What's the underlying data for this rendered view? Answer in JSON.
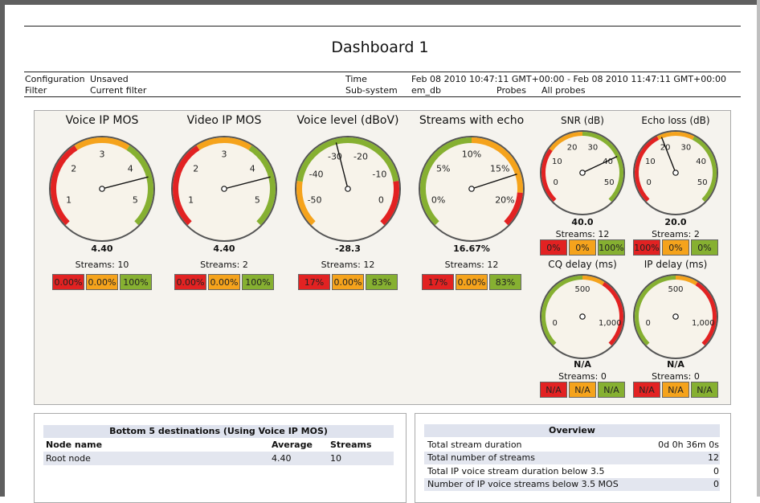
{
  "page": {
    "title": "Dashboard 1"
  },
  "meta": {
    "configuration_label": "Configuration",
    "configuration_value": "Unsaved",
    "filter_label": "Filter",
    "filter_value": "Current filter",
    "time_label": "Time",
    "time_value": "Feb 08 2010 10:47:11 GMT+00:00 - Feb 08 2010 11:47:11 GMT+00:00",
    "subsystem_label": "Sub-system",
    "subsystem_value": "em_db",
    "probes_label": "Probes",
    "probes_value": "All probes"
  },
  "colors": {
    "red": "#e22222",
    "orange": "#f5a31c",
    "green": "#86b031"
  },
  "gauges": {
    "voice_mos": {
      "title": "Voice IP MOS",
      "value_text": "4.40",
      "streams": "Streams: 10",
      "ticks": [
        "1",
        "2",
        "3",
        "4",
        "5"
      ],
      "needle_value": 4.4,
      "min": 1,
      "max": 5,
      "pct": [
        "0.00%",
        "0.00%",
        "100%"
      ]
    },
    "video_mos": {
      "title": "Video IP MOS",
      "value_text": "4.40",
      "streams": "Streams: 2",
      "ticks": [
        "1",
        "2",
        "3",
        "4",
        "5"
      ],
      "needle_value": 4.4,
      "min": 1,
      "max": 5,
      "pct": [
        "0.00%",
        "0.00%",
        "100%"
      ]
    },
    "voice_level": {
      "title": "Voice level (dBoV)",
      "value_text": "-28.3",
      "streams": "Streams: 12",
      "ticks": [
        "-50",
        "-40",
        "-30",
        "-20",
        "-10",
        "0"
      ],
      "needle_value": -28.3,
      "min": -50,
      "max": 0,
      "pct": [
        "17%",
        "0.00%",
        "83%"
      ]
    },
    "echo": {
      "title": "Streams with echo",
      "value_text": "16.67%",
      "streams": "Streams: 12",
      "ticks": [
        "0%",
        "5%",
        "10%",
        "15%",
        "20%"
      ],
      "needle_value": 16.67,
      "min": 0,
      "max": 20,
      "pct": [
        "17%",
        "0.00%",
        "83%"
      ]
    },
    "snr": {
      "title": "SNR (dB)",
      "value_text": "40.0",
      "streams": "Streams: 12",
      "ticks": [
        "0",
        "10",
        "20",
        "30",
        "40",
        "50"
      ],
      "needle_value": 40,
      "min": 0,
      "max": 50,
      "pct": [
        "0%",
        "0%",
        "100%"
      ]
    },
    "echo_loss": {
      "title": "Echo loss (dB)",
      "value_text": "20.0",
      "streams": "Streams: 2",
      "ticks": [
        "0",
        "10",
        "20",
        "30",
        "40",
        "50"
      ],
      "needle_value": 20,
      "min": 0,
      "max": 50,
      "pct": [
        "100%",
        "0%",
        "0%"
      ]
    },
    "cq_delay": {
      "title": "CQ delay (ms)",
      "value_text": "N/A",
      "streams": "Streams: 0",
      "ticks": [
        "0",
        "500",
        "1,000"
      ],
      "pct": [
        "N/A",
        "N/A",
        "N/A"
      ]
    },
    "ip_delay": {
      "title": "IP delay (ms)",
      "value_text": "N/A",
      "streams": "Streams: 0",
      "ticks": [
        "0",
        "500",
        "1,000"
      ],
      "pct": [
        "N/A",
        "N/A",
        "N/A"
      ]
    }
  },
  "bottom5": {
    "title": "Bottom 5 destinations (Using Voice IP MOS)",
    "headers": [
      "Node name",
      "Average",
      "Streams"
    ],
    "rows": [
      [
        "Root node",
        "4.40",
        "10"
      ]
    ]
  },
  "overview": {
    "title": "Overview",
    "rows": [
      [
        "Total stream duration",
        "0d 0h 36m 0s"
      ],
      [
        "Total number of streams",
        "12"
      ],
      [
        "Total IP voice stream duration below 3.5",
        "0"
      ],
      [
        "Number of IP voice streams below 3.5 MOS",
        "0"
      ]
    ]
  }
}
